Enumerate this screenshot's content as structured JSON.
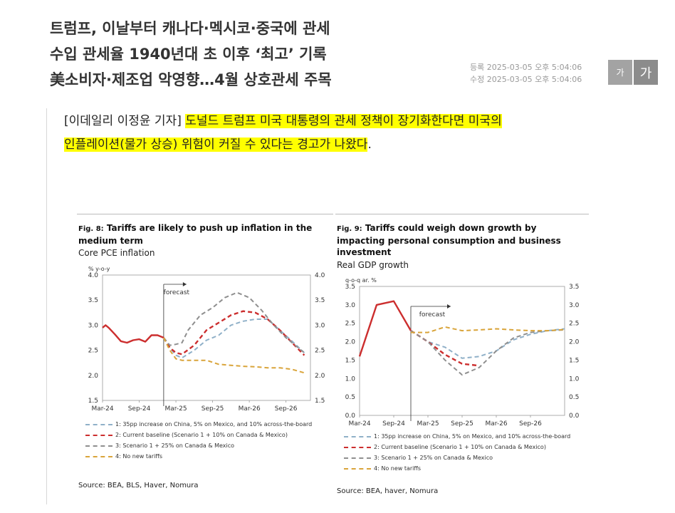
{
  "article": {
    "headline": [
      "트럼프, 이날부터 캐나다·멕시코·중국에 관세",
      "수입 관세율 1940년대 초 이후 ‘최고’ 기록",
      "美소비자·제조업 악영향…4월 상호관세 주목"
    ],
    "registered": "등록 2025-03-05 오후 5:04:06",
    "modified": "수정 2025-03-05 오후 5:04:06",
    "font_small": "가",
    "font_large": "가",
    "byline": "[이데일리 이정윤 기자]",
    "lead_hl1": "도널드 트럼프 미국 대통령의 관세 정책이 장기화한다면 미국의",
    "lead_hl2": "인플레이션(물가 상승) 위험이 커질 수 있다는 경고가 나왔다",
    "lead_end": "."
  },
  "colors": {
    "red": "#cc2e2e",
    "blue": "#8fb0c8",
    "gray": "#8f8f8f",
    "orange": "#d9a43a"
  },
  "chart_data": [
    {
      "type": "line",
      "fig_label": "Fig. 8:",
      "title": "Tariffs are likely to push up inflation in the medium term",
      "subtitle": "Core PCE inflation",
      "ylabel": "% y-o-y",
      "ylim": [
        1.5,
        4.0
      ],
      "yticks": [
        "4.0",
        "3.5",
        "3.0",
        "2.5",
        "2.0",
        "1.5"
      ],
      "xticks": [
        "Mar-24",
        "Sep-24",
        "Mar-25",
        "Sep-25",
        "Mar-26",
        "Sep-26"
      ],
      "xrange": [
        0,
        34
      ],
      "xtick_pos": [
        0,
        6,
        12,
        18,
        24,
        30
      ],
      "forecast_label": "forecast",
      "forecast_x": 10,
      "series": [
        {
          "name": "history",
          "color": "red",
          "dash": "solid",
          "points": [
            [
              0,
              2.95
            ],
            [
              0.5,
              3.0
            ],
            [
              1,
              2.95
            ],
            [
              2,
              2.82
            ],
            [
              3,
              2.68
            ],
            [
              4,
              2.65
            ],
            [
              5,
              2.7
            ],
            [
              6,
              2.72
            ],
            [
              7,
              2.67
            ],
            [
              8,
              2.8
            ],
            [
              9,
              2.8
            ],
            [
              10,
              2.75
            ]
          ]
        },
        {
          "name": "1: 35pp increase on China, 5% on Mexico, and 10% across-the-board",
          "color": "blue",
          "dash": "dash",
          "points": [
            [
              10,
              2.75
            ],
            [
              11,
              2.55
            ],
            [
              12,
              2.4
            ],
            [
              13,
              2.35
            ],
            [
              15,
              2.5
            ],
            [
              17,
              2.7
            ],
            [
              19,
              2.8
            ],
            [
              21,
              3.0
            ],
            [
              23,
              3.08
            ],
            [
              25,
              3.12
            ],
            [
              27,
              3.12
            ],
            [
              29,
              2.9
            ],
            [
              31,
              2.68
            ],
            [
              33,
              2.45
            ]
          ]
        },
        {
          "name": "2: Current baseline (Scenario 1 + 10% on Canada & Mexico)",
          "color": "red",
          "dash": "dash",
          "points": [
            [
              10,
              2.75
            ],
            [
              11,
              2.55
            ],
            [
              12,
              2.45
            ],
            [
              13,
              2.42
            ],
            [
              15,
              2.6
            ],
            [
              17,
              2.9
            ],
            [
              19,
              3.05
            ],
            [
              21,
              3.2
            ],
            [
              23,
              3.28
            ],
            [
              25,
              3.25
            ],
            [
              27,
              3.12
            ],
            [
              29,
              2.9
            ],
            [
              31,
              2.65
            ],
            [
              33,
              2.4
            ]
          ]
        },
        {
          "name": "3: Scenario 1 + 25% on Canada & Mexico",
          "color": "gray",
          "dash": "dash",
          "points": [
            [
              10,
              2.75
            ],
            [
              11,
              2.6
            ],
            [
              12,
              2.62
            ],
            [
              13,
              2.65
            ],
            [
              14,
              2.9
            ],
            [
              16,
              3.2
            ],
            [
              18,
              3.35
            ],
            [
              20,
              3.55
            ],
            [
              22,
              3.65
            ],
            [
              24,
              3.55
            ],
            [
              26,
              3.3
            ],
            [
              28,
              3.0
            ],
            [
              30,
              2.75
            ],
            [
              33,
              2.45
            ]
          ]
        },
        {
          "name": "4: No new tariffs",
          "color": "orange",
          "dash": "dash",
          "points": [
            [
              10,
              2.75
            ],
            [
              11,
              2.5
            ],
            [
              12,
              2.33
            ],
            [
              13,
              2.3
            ],
            [
              15,
              2.3
            ],
            [
              17,
              2.3
            ],
            [
              19,
              2.22
            ],
            [
              21,
              2.2
            ],
            [
              23,
              2.18
            ],
            [
              25,
              2.17
            ],
            [
              27,
              2.15
            ],
            [
              29,
              2.15
            ],
            [
              31,
              2.12
            ],
            [
              33,
              2.05
            ]
          ]
        }
      ],
      "legend": [
        {
          "label": "1: 35pp increase on China, 5% on Mexico, and 10% across-the-board",
          "color": "blue",
          "dash": "dash"
        },
        {
          "label": "2: Current baseline (Scenario 1 + 10% on Canada & Mexico)",
          "color": "red",
          "dash": "dash"
        },
        {
          "label": "3: Scenario 1 + 25% on Canada & Mexico",
          "color": "gray",
          "dash": "dash"
        },
        {
          "label": "4: No new tariffs",
          "color": "orange",
          "dash": "dash"
        }
      ],
      "source": "Source: BEA, BLS, Haver, Nomura"
    },
    {
      "type": "line",
      "fig_label": "Fig. 9:",
      "title": "Tariffs could weigh down growth by impacting personal consumption and business investment",
      "subtitle": "Real GDP growth",
      "ylabel": "q-o-q ar. %",
      "ylim": [
        0.0,
        3.5
      ],
      "yticks": [
        "3.5",
        "3.0",
        "2.5",
        "2.0",
        "1.5",
        "1.0",
        "0.5",
        "0.0"
      ],
      "xticks": [
        "Mar-24",
        "Sep-24",
        "Mar-25",
        "Sep-25",
        "Mar-26",
        "Sep-26"
      ],
      "xrange": [
        0,
        12
      ],
      "xtick_pos": [
        0,
        2,
        4,
        6,
        8,
        10
      ],
      "forecast_label": "forecast",
      "forecast_x": 3,
      "series": [
        {
          "name": "history",
          "color": "red",
          "dash": "solid",
          "points": [
            [
              0,
              1.6
            ],
            [
              1,
              3.0
            ],
            [
              2,
              3.1
            ],
            [
              3,
              2.3
            ]
          ]
        },
        {
          "name": "1: 35pp increase on China, 5% on Mexico, and 10% across-the-board",
          "color": "blue",
          "dash": "dash",
          "points": [
            [
              3,
              2.3
            ],
            [
              4,
              2.0
            ],
            [
              5,
              1.85
            ],
            [
              6,
              1.55
            ],
            [
              7,
              1.6
            ],
            [
              8,
              1.75
            ],
            [
              9,
              2.05
            ],
            [
              10,
              2.2
            ],
            [
              11,
              2.3
            ],
            [
              12,
              2.35
            ]
          ]
        },
        {
          "name": "2: Current baseline (Scenario 1 + 10% on Canada & Mexico)",
          "color": "red",
          "dash": "dash",
          "points": [
            [
              3,
              2.3
            ],
            [
              4,
              2.0
            ],
            [
              5,
              1.65
            ],
            [
              6,
              1.4
            ],
            [
              7,
              1.35
            ]
          ]
        },
        {
          "name": "3: Scenario 1 + 25% on Canada & Mexico",
          "color": "gray",
          "dash": "dash",
          "points": [
            [
              3,
              2.3
            ],
            [
              4,
              2.0
            ],
            [
              5,
              1.5
            ],
            [
              6,
              1.1
            ],
            [
              7,
              1.3
            ],
            [
              8,
              1.75
            ],
            [
              9,
              2.1
            ],
            [
              10,
              2.25
            ],
            [
              11,
              2.3
            ],
            [
              12,
              2.32
            ]
          ]
        },
        {
          "name": "4: No new tariffs",
          "color": "orange",
          "dash": "dash",
          "points": [
            [
              3,
              2.25
            ],
            [
              4,
              2.25
            ],
            [
              5,
              2.4
            ],
            [
              6,
              2.3
            ],
            [
              7,
              2.32
            ],
            [
              8,
              2.35
            ],
            [
              9,
              2.32
            ],
            [
              10,
              2.3
            ],
            [
              11,
              2.3
            ],
            [
              12,
              2.33
            ]
          ]
        }
      ],
      "legend": [
        {
          "label": "1: 35pp increase on China, 5% on Mexico, and 10% across-the-board",
          "color": "blue",
          "dash": "dash"
        },
        {
          "label": "2: Current baseline (Scenario 1 + 10% on Canada & Mexico)",
          "color": "red",
          "dash": "dash"
        },
        {
          "label": "3: Scenario 1 + 25% on Canada & Mexico",
          "color": "gray",
          "dash": "dash"
        },
        {
          "label": "4: No new tariffs",
          "color": "orange",
          "dash": "dash"
        }
      ],
      "source": "Source: BEA, haver, Nomura"
    }
  ]
}
